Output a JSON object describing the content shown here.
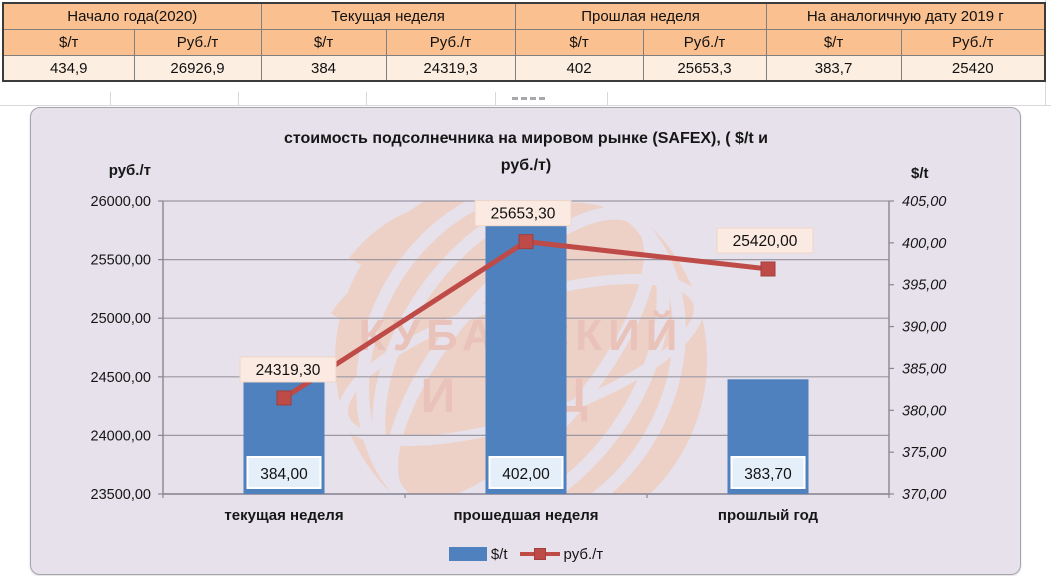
{
  "table": {
    "groups": [
      {
        "label": "Начало года(2020)"
      },
      {
        "label": "Текущая неделя"
      },
      {
        "label": "Прошлая неделя"
      },
      {
        "label": "На аналогичную дату 2019 г"
      }
    ],
    "subheaders": [
      "$/т",
      "Руб./т",
      "$/т",
      "Руб./т",
      "$/т",
      "Руб./т",
      "$/т",
      "Руб./т"
    ],
    "values": [
      "434,9",
      "26926,9",
      "384",
      "24319,3",
      "402",
      "25653,3",
      "383,7",
      "25420"
    ]
  },
  "chart_data": {
    "type": "bar",
    "combo": "bar+line, dual axis",
    "title": "стоимость подсолнечника на мировом рынке (SAFEX), ( $/t и руб./т)",
    "title_lines": [
      "стоимость подсолнечника на мировом рынке (SAFEX), ( $/t и",
      "руб./т)"
    ],
    "categories": [
      "текущая неделя",
      "прошедшая неделя",
      "прошлый год"
    ],
    "series": [
      {
        "name": "$/t",
        "type": "bar",
        "axis": "right",
        "values": [
          384,
          402,
          383.7
        ],
        "labels": [
          "384,00",
          "402,00",
          "383,70"
        ]
      },
      {
        "name": "руб./т",
        "type": "line",
        "axis": "left",
        "values": [
          24319.3,
          25653.3,
          25420
        ],
        "labels": [
          "24319,30",
          "25653,30",
          "25420,00"
        ]
      }
    ],
    "left_axis": {
      "title": "руб./т",
      "min": 23500,
      "max": 26000,
      "ticks": [
        "26000,00",
        "25500,00",
        "25000,00",
        "24500,00",
        "24000,00",
        "23500,00"
      ]
    },
    "right_axis": {
      "title": "$/t",
      "min": 370,
      "max": 405,
      "ticks": [
        "405,00",
        "400,00",
        "395,00",
        "390,00",
        "385,00",
        "380,00",
        "375,00",
        "370,00"
      ]
    },
    "legend_position": "bottom",
    "grid": "horizontal major lines on",
    "watermark_lines": [
      "КУБАНСКИЙ",
      "ИКЦ"
    ]
  },
  "colors": {
    "bar": "#4E81BD",
    "line": "#BE4B48",
    "chart_bg": "#E6E1EB",
    "grid": "#9C98A2",
    "axis": "#8A8694",
    "table_header_bg": "#FAC08F",
    "table_row_bg": "#FCEEE1",
    "pink_label_bg": "#FBEAE1",
    "blue_label_bg": "#E4EFFA",
    "watermark": "#F2C7AE",
    "watermark_text": "#ECAE9A"
  }
}
